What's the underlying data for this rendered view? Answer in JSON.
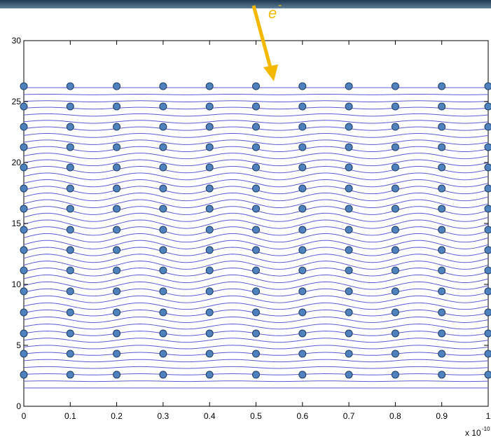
{
  "chart_data": {
    "type": "scatter",
    "x": [
      0,
      0.1,
      0.2,
      0.3,
      0.4,
      0.5,
      0.6,
      0.7,
      0.8,
      0.9,
      1
    ],
    "atom_rows": [
      2.59,
      4.31,
      5.98,
      7.7,
      9.43,
      11.15,
      12.82,
      14.48,
      16.21,
      17.87,
      19.6,
      21.26,
      22.93,
      24.6,
      26.26
    ],
    "atom_color": "#4f81bd",
    "wave_lines": [
      1.5,
      2.06,
      2.62,
      3.18,
      3.74,
      4.3,
      4.86,
      5.42,
      5.98,
      6.54,
      7.1,
      7.66,
      8.22,
      8.78,
      9.34,
      9.9,
      10.46,
      11.02,
      11.58,
      12.14,
      12.7,
      13.26,
      13.82,
      14.38,
      14.94,
      15.5,
      16.06,
      16.62,
      17.18,
      17.74,
      18.3,
      18.86,
      19.42,
      19.98,
      20.54,
      21.1,
      21.66,
      22.22,
      22.78,
      23.34,
      23.9,
      24.46,
      25.02,
      25.58,
      26.14
    ],
    "wave_amplitude": 0.35,
    "wave_period": 0.2,
    "wave_color": "#5b5bd6",
    "xlim": [
      0,
      1
    ],
    "ylim": [
      0,
      30
    ],
    "xticks": [
      0,
      0.1,
      0.2,
      0.3,
      0.4,
      0.5,
      0.6,
      0.7,
      0.8,
      0.9,
      1
    ],
    "yticks": [
      0,
      5,
      10,
      15,
      20,
      25,
      30
    ],
    "x_multiplier": "x 10",
    "x_exponent": "-10",
    "annotation": "e",
    "annotation_superscript": "-"
  }
}
